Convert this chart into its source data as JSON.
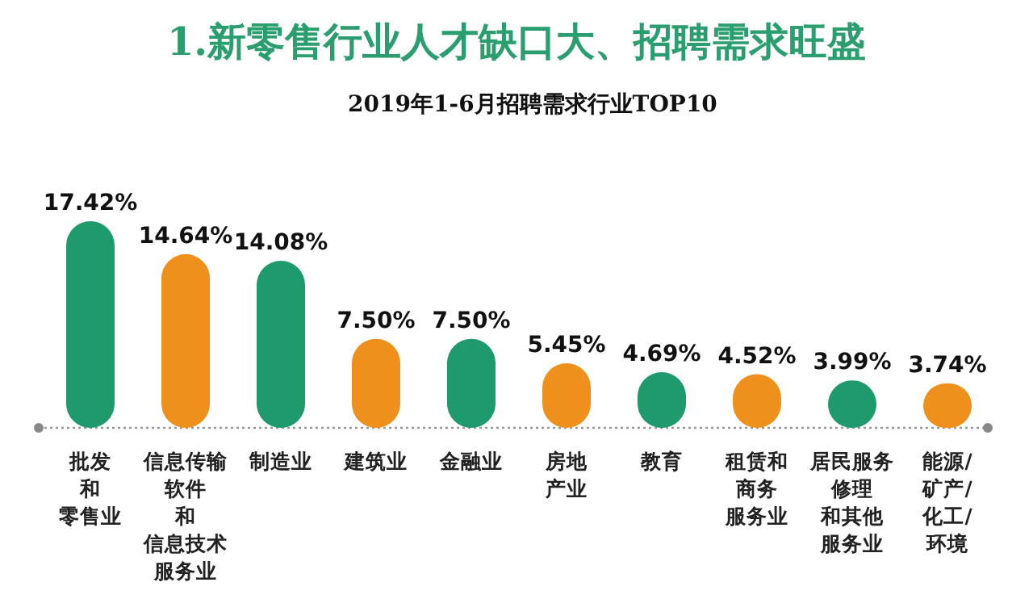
{
  "chart_data": {
    "type": "bar",
    "title": "1.新零售行业人才缺口大、招聘需求旺盛",
    "subtitle": "2019年1-6月招聘需求行业TOP10",
    "categories": [
      "批发和零售业",
      "信息传输软件和信息技术服务业",
      "制造业",
      "建筑业",
      "金融业",
      "房地产业",
      "教育",
      "租赁和商务服务业",
      "居民服务修理和其他服务业",
      "能源/矿产/化工/环境"
    ],
    "values": [
      17.42,
      14.64,
      14.08,
      7.5,
      7.5,
      5.45,
      4.69,
      4.52,
      3.99,
      3.74
    ],
    "value_labels": [
      "17.42%",
      "14.64%",
      "14.08%",
      "7.50%",
      "7.50%",
      "5.45%",
      "4.69%",
      "4.52%",
      "3.99%",
      "3.74%"
    ],
    "colors": [
      "#1e9a6c",
      "#f0901c",
      "#1e9a6c",
      "#f0901c",
      "#1e9a6c",
      "#f0901c",
      "#1e9a6c",
      "#f0901c",
      "#1e9a6c",
      "#f0901c"
    ]
  }
}
